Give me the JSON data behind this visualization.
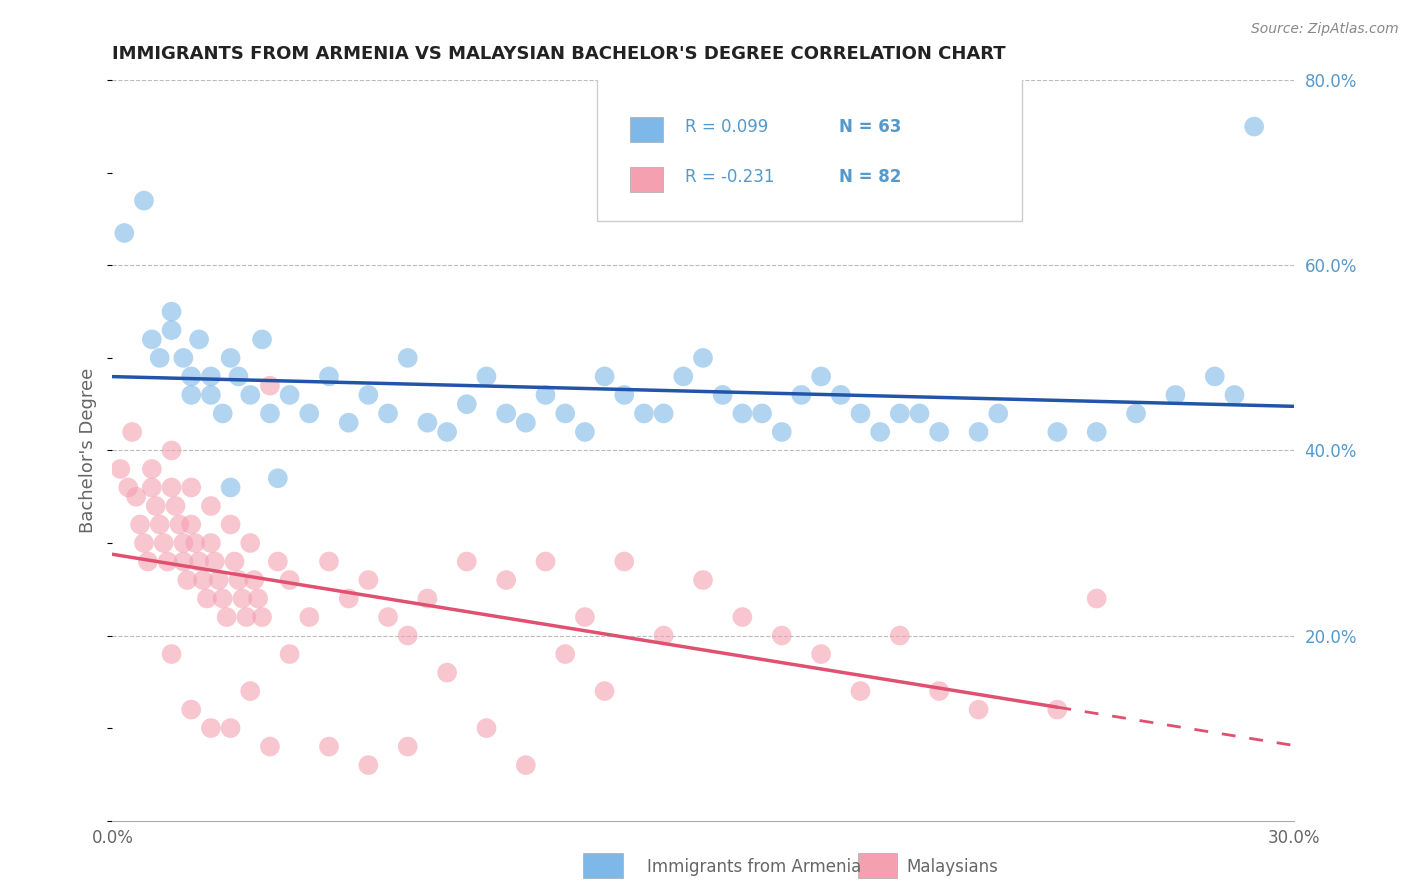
{
  "title": "IMMIGRANTS FROM ARMENIA VS MALAYSIAN BACHELOR'S DEGREE CORRELATION CHART",
  "source": "Source: ZipAtlas.com",
  "ylabel": "Bachelor's Degree",
  "legend_label_1": "Immigrants from Armenia",
  "legend_label_2": "Malaysians",
  "R1": 0.099,
  "N1": 63,
  "R2": -0.231,
  "N2": 82,
  "xlim": [
    0.0,
    30.0
  ],
  "ylim": [
    0.0,
    80.0
  ],
  "blue_color": "#7EB8E8",
  "pink_color": "#F4A0B0",
  "blue_line_color": "#2255AA",
  "pink_line_color": "#E05070",
  "background_color": "#FFFFFF",
  "grid_color": "#CCCCCC",
  "title_color": "#333333",
  "axis_label_color": "#666666",
  "right_tick_color": "#5599CC",
  "blue_scatter_x": [
    0.3,
    0.8,
    1.0,
    1.2,
    1.5,
    1.5,
    1.8,
    2.0,
    2.0,
    2.2,
    2.5,
    2.5,
    2.8,
    3.0,
    3.2,
    3.5,
    3.8,
    4.0,
    4.5,
    5.0,
    5.5,
    6.0,
    6.5,
    7.0,
    7.5,
    8.0,
    8.5,
    9.0,
    9.5,
    10.0,
    10.5,
    11.0,
    11.5,
    12.0,
    12.5,
    13.0,
    13.5,
    14.0,
    14.5,
    15.0,
    15.5,
    16.0,
    16.5,
    17.0,
    17.5,
    18.0,
    18.5,
    19.0,
    19.5,
    20.0,
    20.5,
    21.0,
    22.0,
    22.5,
    24.0,
    25.0,
    26.0,
    27.0,
    28.0,
    28.5,
    29.0,
    3.0,
    4.2
  ],
  "blue_scatter_y": [
    63.5,
    67.0,
    52.0,
    50.0,
    55.0,
    53.0,
    50.0,
    48.0,
    46.0,
    52.0,
    48.0,
    46.0,
    44.0,
    50.0,
    48.0,
    46.0,
    52.0,
    44.0,
    46.0,
    44.0,
    48.0,
    43.0,
    46.0,
    44.0,
    50.0,
    43.0,
    42.0,
    45.0,
    48.0,
    44.0,
    43.0,
    46.0,
    44.0,
    42.0,
    48.0,
    46.0,
    44.0,
    44.0,
    48.0,
    50.0,
    46.0,
    44.0,
    44.0,
    42.0,
    46.0,
    48.0,
    46.0,
    44.0,
    42.0,
    44.0,
    44.0,
    42.0,
    42.0,
    44.0,
    42.0,
    42.0,
    44.0,
    46.0,
    48.0,
    46.0,
    75.0,
    36.0,
    37.0
  ],
  "pink_scatter_x": [
    0.2,
    0.4,
    0.5,
    0.6,
    0.7,
    0.8,
    0.9,
    1.0,
    1.0,
    1.1,
    1.2,
    1.3,
    1.4,
    1.5,
    1.5,
    1.6,
    1.7,
    1.8,
    1.8,
    1.9,
    2.0,
    2.0,
    2.1,
    2.2,
    2.3,
    2.4,
    2.5,
    2.5,
    2.6,
    2.7,
    2.8,
    2.9,
    3.0,
    3.1,
    3.2,
    3.3,
    3.4,
    3.5,
    3.6,
    3.7,
    3.8,
    4.0,
    4.2,
    4.5,
    5.0,
    5.5,
    6.0,
    6.5,
    7.0,
    7.5,
    8.0,
    9.0,
    10.0,
    11.0,
    12.0,
    13.0,
    14.0,
    15.0,
    16.0,
    17.0,
    18.0,
    19.0,
    20.0,
    21.0,
    22.0,
    24.0,
    25.0,
    1.5,
    2.0,
    2.5,
    3.0,
    3.5,
    4.0,
    4.5,
    5.5,
    6.5,
    7.5,
    8.5,
    9.5,
    10.5,
    11.5,
    12.5
  ],
  "pink_scatter_y": [
    38.0,
    36.0,
    42.0,
    35.0,
    32.0,
    30.0,
    28.0,
    38.0,
    36.0,
    34.0,
    32.0,
    30.0,
    28.0,
    40.0,
    36.0,
    34.0,
    32.0,
    30.0,
    28.0,
    26.0,
    36.0,
    32.0,
    30.0,
    28.0,
    26.0,
    24.0,
    34.0,
    30.0,
    28.0,
    26.0,
    24.0,
    22.0,
    32.0,
    28.0,
    26.0,
    24.0,
    22.0,
    30.0,
    26.0,
    24.0,
    22.0,
    47.0,
    28.0,
    26.0,
    22.0,
    28.0,
    24.0,
    26.0,
    22.0,
    20.0,
    24.0,
    28.0,
    26.0,
    28.0,
    22.0,
    28.0,
    20.0,
    26.0,
    22.0,
    20.0,
    18.0,
    14.0,
    20.0,
    14.0,
    12.0,
    12.0,
    24.0,
    18.0,
    12.0,
    10.0,
    10.0,
    14.0,
    8.0,
    18.0,
    8.0,
    6.0,
    8.0,
    16.0,
    10.0,
    6.0,
    18.0,
    14.0
  ]
}
